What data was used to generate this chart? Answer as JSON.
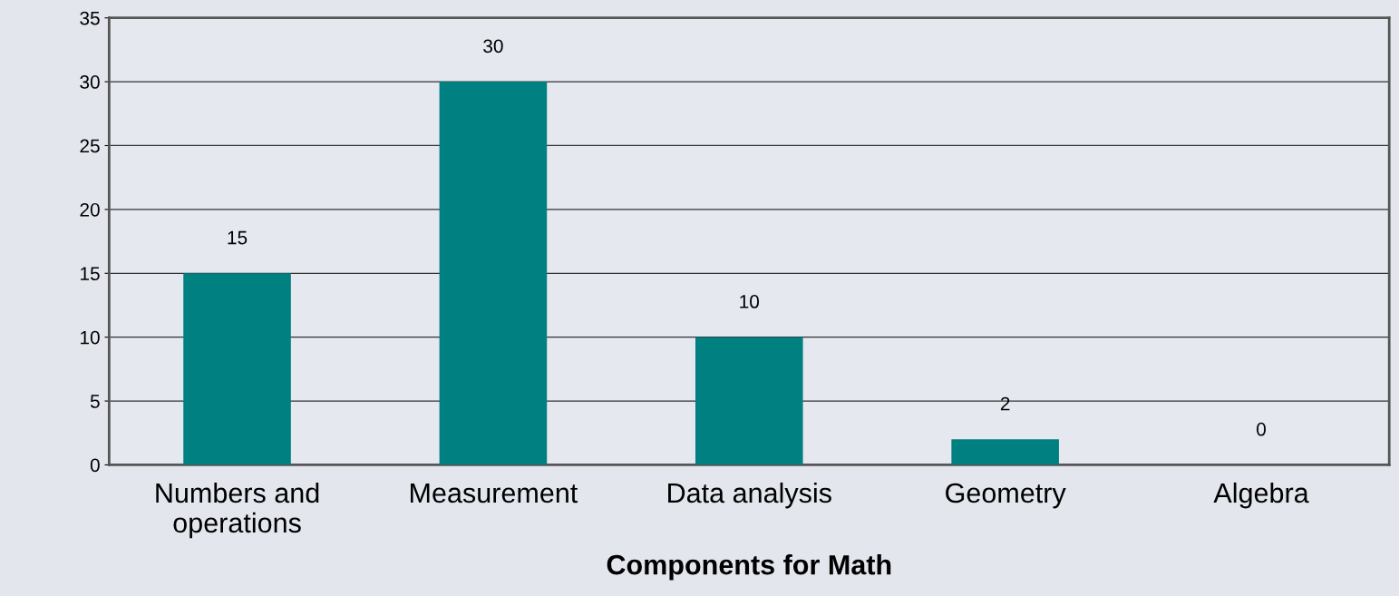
{
  "chart_data": {
    "type": "bar",
    "xlabel": "Components for Math",
    "categories": [
      "Numbers and\noperations",
      "Measurement",
      "Data analysis",
      "Geometry",
      "Algebra"
    ],
    "values": [
      15,
      30,
      10,
      2,
      0
    ],
    "color": "#008080",
    "data_labels": true,
    "grid": "y",
    "ylim": [
      0,
      35
    ],
    "yticks": [
      0,
      5,
      10,
      15,
      20,
      25,
      30,
      35
    ]
  }
}
